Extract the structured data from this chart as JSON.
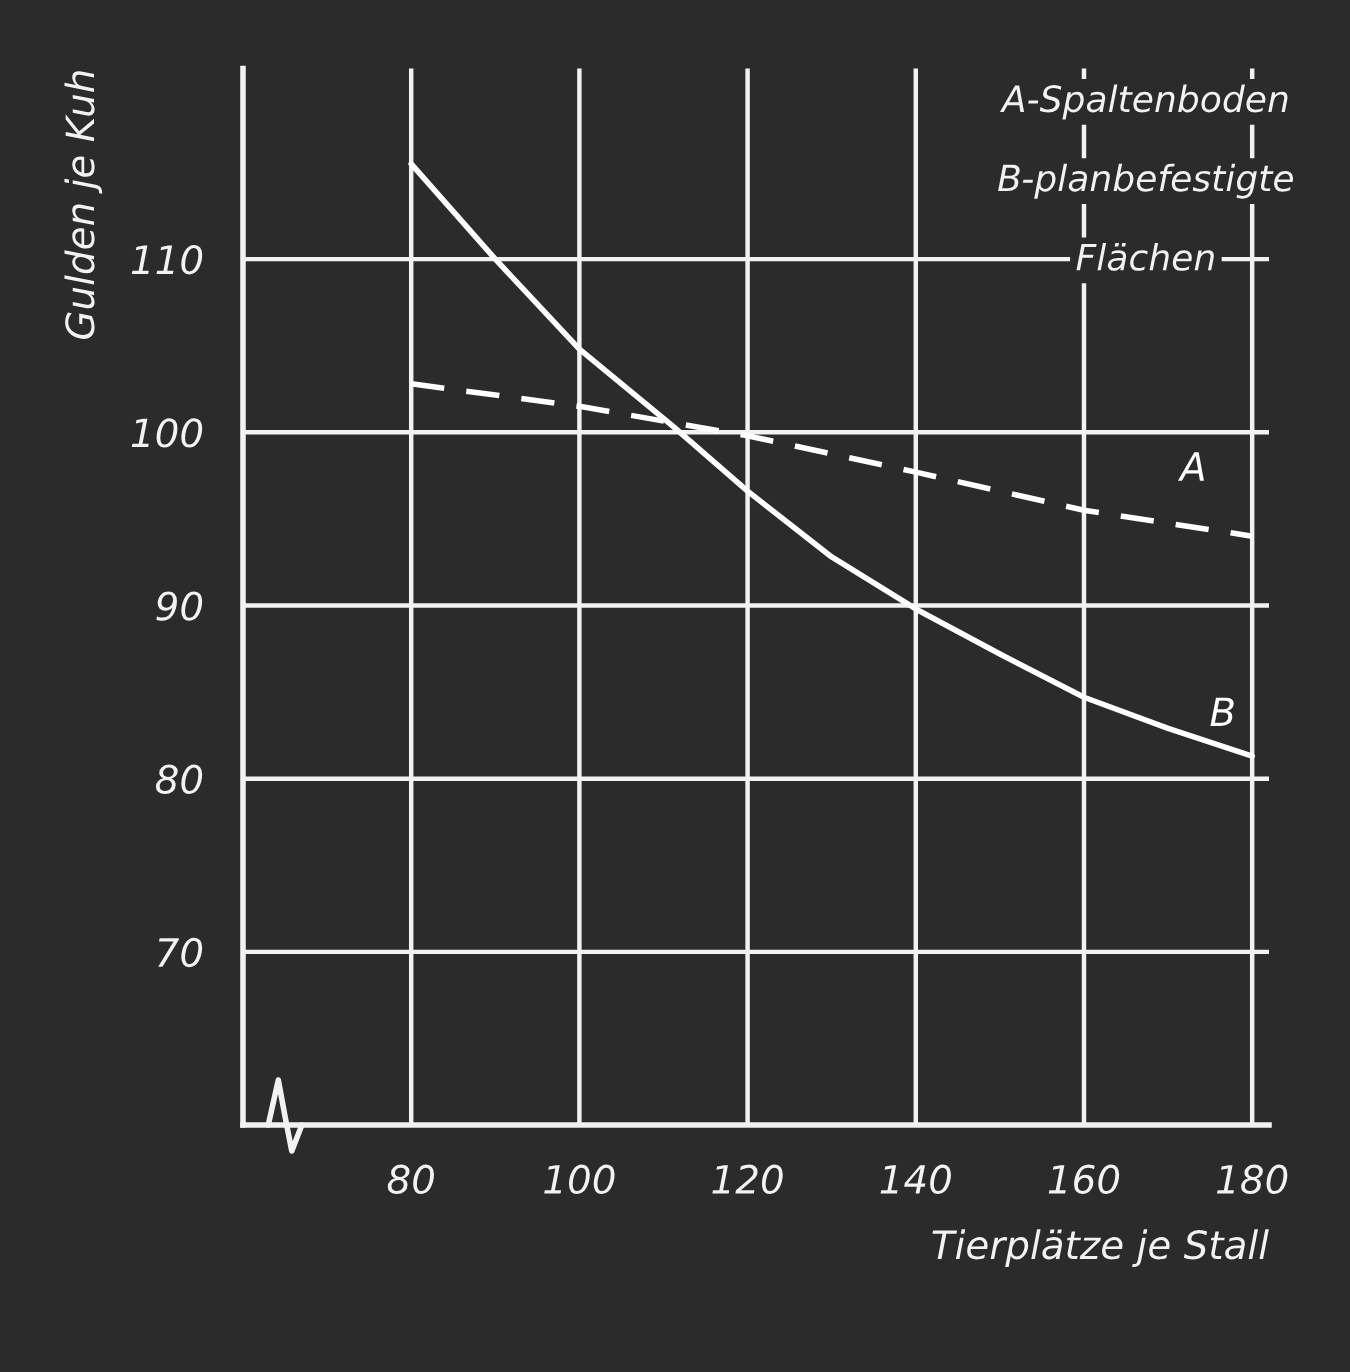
{
  "chart_data": {
    "type": "line",
    "xlabel": "Tierplätze je Stall",
    "ylabel": "Gulden je Kuh",
    "xlim": [
      60,
      182
    ],
    "ylim": [
      60,
      121
    ],
    "xticks": [
      80,
      100,
      120,
      140,
      160,
      180
    ],
    "yticks": [
      70,
      80,
      90,
      100,
      110
    ],
    "grid": true,
    "legend": false,
    "marker": "none",
    "series": [
      {
        "name": "A",
        "color": "#ffffff",
        "line_style": "dashed",
        "x": [
          80,
          100,
          120,
          140,
          160,
          180
        ],
        "values": [
          102.8,
          101.5,
          99.8,
          97.7,
          95.5,
          94.0
        ]
      },
      {
        "name": "B",
        "color": "#ffffff",
        "line_style": "solid",
        "x": [
          80,
          90,
          100,
          111,
          120,
          130,
          140,
          150,
          160,
          170,
          180
        ],
        "values": [
          115.5,
          110,
          104.8,
          100.4,
          96.6,
          92.8,
          89.8,
          87.2,
          84.7,
          82.9,
          81.3
        ]
      }
    ],
    "annotations": [
      "A-Spaltenboden",
      "B-planbefestigte",
      "Flächen"
    ]
  }
}
